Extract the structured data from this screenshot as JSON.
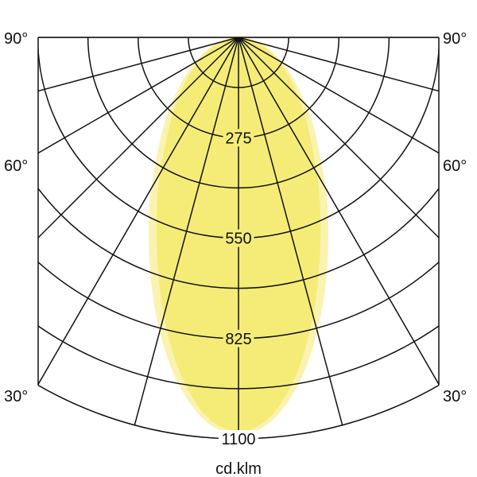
{
  "chart_data": {
    "type": "polar",
    "unit_label": "cd.klm",
    "radial_tick_labels": [
      "275",
      "550",
      "825",
      "1100"
    ],
    "radial_range": [
      0,
      1100
    ],
    "radial_grid_step": 137.5,
    "angle_tick_labels": [
      "90°",
      "60°",
      "30°"
    ],
    "angle_grid_step_deg": 15,
    "angle_range_deg": [
      -90,
      90
    ],
    "grid": true,
    "angles_deg": [
      0,
      5,
      10,
      15,
      20,
      25,
      30,
      40,
      50,
      60,
      70,
      80,
      90
    ],
    "series": [
      {
        "values": [
          1089,
          1054,
          960,
          834,
          703,
          582,
          478,
          320,
          213,
          139,
          84,
          40,
          0
        ],
        "color": "#faf3b0"
      },
      {
        "values": [
          1080,
          1040,
          930,
          790,
          650,
          530,
          430,
          285,
          190,
          124,
          75,
          36,
          0
        ],
        "color": "#f5ec78"
      }
    ]
  }
}
